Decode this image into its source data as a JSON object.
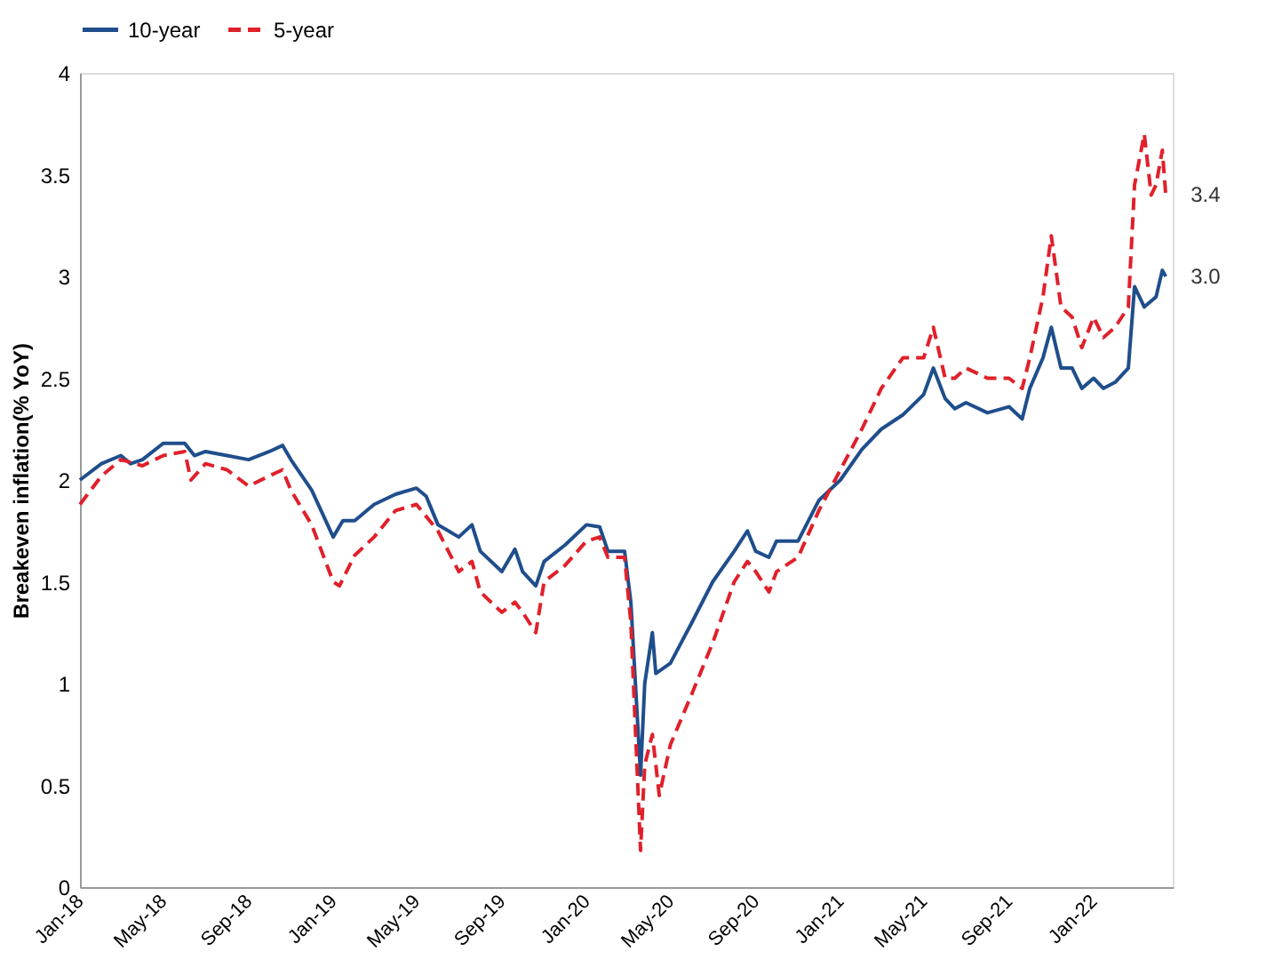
{
  "chart_data": {
    "type": "line",
    "ylabel": "Breakeven inflation(% YoY)",
    "xlim": [
      "2018-01-01",
      "2022-04-25"
    ],
    "xticks": [
      {
        "value": "2018-01-01",
        "label": "Jan-18"
      },
      {
        "value": "2018-05-01",
        "label": "May-18"
      },
      {
        "value": "2018-09-01",
        "label": "Sep-18"
      },
      {
        "value": "2019-01-01",
        "label": "Jan-19"
      },
      {
        "value": "2019-05-01",
        "label": "May-19"
      },
      {
        "value": "2019-09-01",
        "label": "Sep-19"
      },
      {
        "value": "2020-01-01",
        "label": "Jan-20"
      },
      {
        "value": "2020-05-01",
        "label": "May-20"
      },
      {
        "value": "2020-09-01",
        "label": "Sep-20"
      },
      {
        "value": "2021-01-01",
        "label": "Jan-21"
      },
      {
        "value": "2021-05-01",
        "label": "May-21"
      },
      {
        "value": "2021-09-01",
        "label": "Sep-21"
      },
      {
        "value": "2022-01-01",
        "label": "Jan-22"
      }
    ],
    "ylim": [
      0,
      4
    ],
    "yticks": [
      0,
      0.5,
      1,
      1.5,
      2,
      2.5,
      3,
      3.5,
      4
    ],
    "grid": false,
    "legend": "top",
    "marker": "none",
    "annotations": [
      {
        "text": "3.4",
        "x": "2022-04-15",
        "y": 3.4
      },
      {
        "text": "3.0",
        "x": "2022-04-15",
        "y": 3.0
      }
    ],
    "series": [
      {
        "name": "10-year",
        "color": "#1f4e8c",
        "line_style": "solid",
        "x": [
          "2018-01-01",
          "2018-02-01",
          "2018-03-01",
          "2018-03-15",
          "2018-04-01",
          "2018-05-01",
          "2018-06-01",
          "2018-06-15",
          "2018-07-01",
          "2018-08-01",
          "2018-09-01",
          "2018-10-01",
          "2018-10-20",
          "2018-11-01",
          "2018-12-01",
          "2019-01-01",
          "2019-01-15",
          "2019-02-01",
          "2019-03-01",
          "2019-04-01",
          "2019-05-01",
          "2019-05-15",
          "2019-06-01",
          "2019-07-01",
          "2019-07-20",
          "2019-08-01",
          "2019-09-01",
          "2019-09-20",
          "2019-10-01",
          "2019-10-20",
          "2019-11-01",
          "2019-12-01",
          "2020-01-01",
          "2020-01-20",
          "2020-02-01",
          "2020-02-25",
          "2020-03-05",
          "2020-03-19",
          "2020-03-25",
          "2020-04-05",
          "2020-04-10",
          "2020-05-01",
          "2020-06-01",
          "2020-07-01",
          "2020-08-01",
          "2020-08-20",
          "2020-09-01",
          "2020-09-20",
          "2020-10-01",
          "2020-11-01",
          "2020-12-01",
          "2021-01-01",
          "2021-02-01",
          "2021-03-01",
          "2021-04-01",
          "2021-05-01",
          "2021-05-15",
          "2021-06-01",
          "2021-06-15",
          "2021-07-01",
          "2021-08-01",
          "2021-09-01",
          "2021-09-20",
          "2021-10-01",
          "2021-10-20",
          "2021-11-01",
          "2021-11-15",
          "2021-12-01",
          "2021-12-15",
          "2022-01-01",
          "2022-01-15",
          "2022-02-01",
          "2022-02-20",
          "2022-03-01",
          "2022-03-15",
          "2022-04-01",
          "2022-04-10",
          "2022-04-15"
        ],
        "values": [
          2.0,
          2.08,
          2.12,
          2.08,
          2.1,
          2.18,
          2.18,
          2.12,
          2.14,
          2.12,
          2.1,
          2.14,
          2.17,
          2.1,
          1.95,
          1.72,
          1.8,
          1.8,
          1.88,
          1.93,
          1.96,
          1.92,
          1.78,
          1.72,
          1.78,
          1.65,
          1.55,
          1.66,
          1.55,
          1.48,
          1.6,
          1.68,
          1.78,
          1.77,
          1.65,
          1.65,
          1.4,
          0.55,
          1.0,
          1.25,
          1.05,
          1.1,
          1.3,
          1.5,
          1.65,
          1.75,
          1.65,
          1.62,
          1.7,
          1.7,
          1.9,
          2.0,
          2.15,
          2.25,
          2.32,
          2.42,
          2.55,
          2.4,
          2.35,
          2.38,
          2.33,
          2.36,
          2.3,
          2.45,
          2.6,
          2.75,
          2.55,
          2.55,
          2.45,
          2.5,
          2.45,
          2.48,
          2.55,
          2.95,
          2.85,
          2.9,
          3.03,
          3.0
        ]
      },
      {
        "name": "5-year",
        "color": "#e0202a",
        "line_style": "dashed",
        "x": [
          "2018-01-01",
          "2018-02-01",
          "2018-03-01",
          "2018-04-01",
          "2018-05-01",
          "2018-06-01",
          "2018-06-10",
          "2018-07-01",
          "2018-08-01",
          "2018-09-01",
          "2018-10-01",
          "2018-10-20",
          "2018-11-01",
          "2018-12-01",
          "2019-01-01",
          "2019-01-10",
          "2019-02-01",
          "2019-03-01",
          "2019-04-01",
          "2019-05-01",
          "2019-06-01",
          "2019-07-01",
          "2019-07-20",
          "2019-08-01",
          "2019-09-01",
          "2019-09-20",
          "2019-10-01",
          "2019-10-20",
          "2019-11-01",
          "2019-12-01",
          "2020-01-01",
          "2020-01-20",
          "2020-02-01",
          "2020-02-25",
          "2020-03-05",
          "2020-03-19",
          "2020-03-25",
          "2020-04-05",
          "2020-04-15",
          "2020-05-01",
          "2020-06-01",
          "2020-07-01",
          "2020-08-01",
          "2020-08-20",
          "2020-09-01",
          "2020-09-20",
          "2020-10-01",
          "2020-11-01",
          "2020-12-01",
          "2021-01-01",
          "2021-02-01",
          "2021-03-01",
          "2021-04-01",
          "2021-05-01",
          "2021-05-15",
          "2021-06-01",
          "2021-06-15",
          "2021-07-01",
          "2021-08-01",
          "2021-09-01",
          "2021-09-20",
          "2021-10-01",
          "2021-10-20",
          "2021-11-01",
          "2021-11-15",
          "2021-12-01",
          "2021-12-15",
          "2022-01-01",
          "2022-01-15",
          "2022-02-01",
          "2022-02-20",
          "2022-03-01",
          "2022-03-15",
          "2022-03-25",
          "2022-04-01",
          "2022-04-10",
          "2022-04-15"
        ],
        "values": [
          1.88,
          2.02,
          2.1,
          2.07,
          2.12,
          2.14,
          2.0,
          2.08,
          2.05,
          1.97,
          2.02,
          2.05,
          1.95,
          1.78,
          1.5,
          1.48,
          1.63,
          1.72,
          1.85,
          1.88,
          1.75,
          1.55,
          1.6,
          1.45,
          1.35,
          1.4,
          1.35,
          1.25,
          1.5,
          1.58,
          1.7,
          1.72,
          1.62,
          1.62,
          1.3,
          0.18,
          0.6,
          0.75,
          0.45,
          0.7,
          0.95,
          1.2,
          1.5,
          1.6,
          1.55,
          1.45,
          1.55,
          1.62,
          1.85,
          2.05,
          2.25,
          2.45,
          2.6,
          2.6,
          2.75,
          2.5,
          2.5,
          2.55,
          2.5,
          2.5,
          2.45,
          2.6,
          2.9,
          3.2,
          2.85,
          2.8,
          2.65,
          2.8,
          2.7,
          2.75,
          2.85,
          3.45,
          3.7,
          3.4,
          3.45,
          3.62,
          3.4
        ]
      }
    ]
  }
}
